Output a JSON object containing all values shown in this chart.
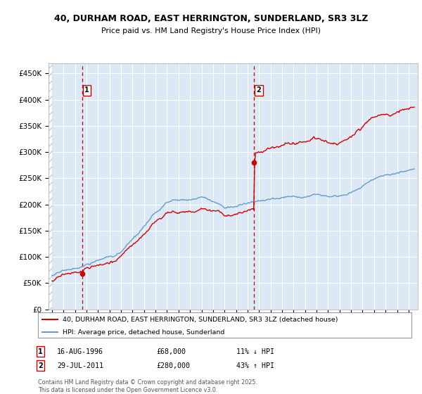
{
  "title": "40, DURHAM ROAD, EAST HERRINGTON, SUNDERLAND, SR3 3LZ",
  "subtitle": "Price paid vs. HM Land Registry's House Price Index (HPI)",
  "ylim": [
    0,
    470000
  ],
  "yticks": [
    0,
    50000,
    100000,
    150000,
    200000,
    250000,
    300000,
    350000,
    400000,
    450000
  ],
  "ytick_labels": [
    "£0",
    "£50K",
    "£100K",
    "£150K",
    "£200K",
    "£250K",
    "£300K",
    "£350K",
    "£400K",
    "£450K"
  ],
  "bg_color": "#dce9f5",
  "grid_color": "white",
  "sale1_date": 1996.62,
  "sale1_price": 68000,
  "sale2_date": 2011.57,
  "sale2_price": 280000,
  "sale1_label": "1",
  "sale2_label": "2",
  "legend_house": "40, DURHAM ROAD, EAST HERRINGTON, SUNDERLAND, SR3 3LZ (detached house)",
  "legend_hpi": "HPI: Average price, detached house, Sunderland",
  "footer1": "Contains HM Land Registry data © Crown copyright and database right 2025.",
  "footer2": "This data is licensed under the Open Government Licence v3.0.",
  "note1_label": "1",
  "note1_date": "16-AUG-1996",
  "note1_price": "£68,000",
  "note1_hpi": "11% ↓ HPI",
  "note2_label": "2",
  "note2_date": "29-JUL-2011",
  "note2_price": "£280,000",
  "note2_hpi": "43% ↑ HPI",
  "red_color": "#cc0000",
  "blue_color": "#6699cc",
  "xmin": 1993.7,
  "xmax": 2025.8
}
